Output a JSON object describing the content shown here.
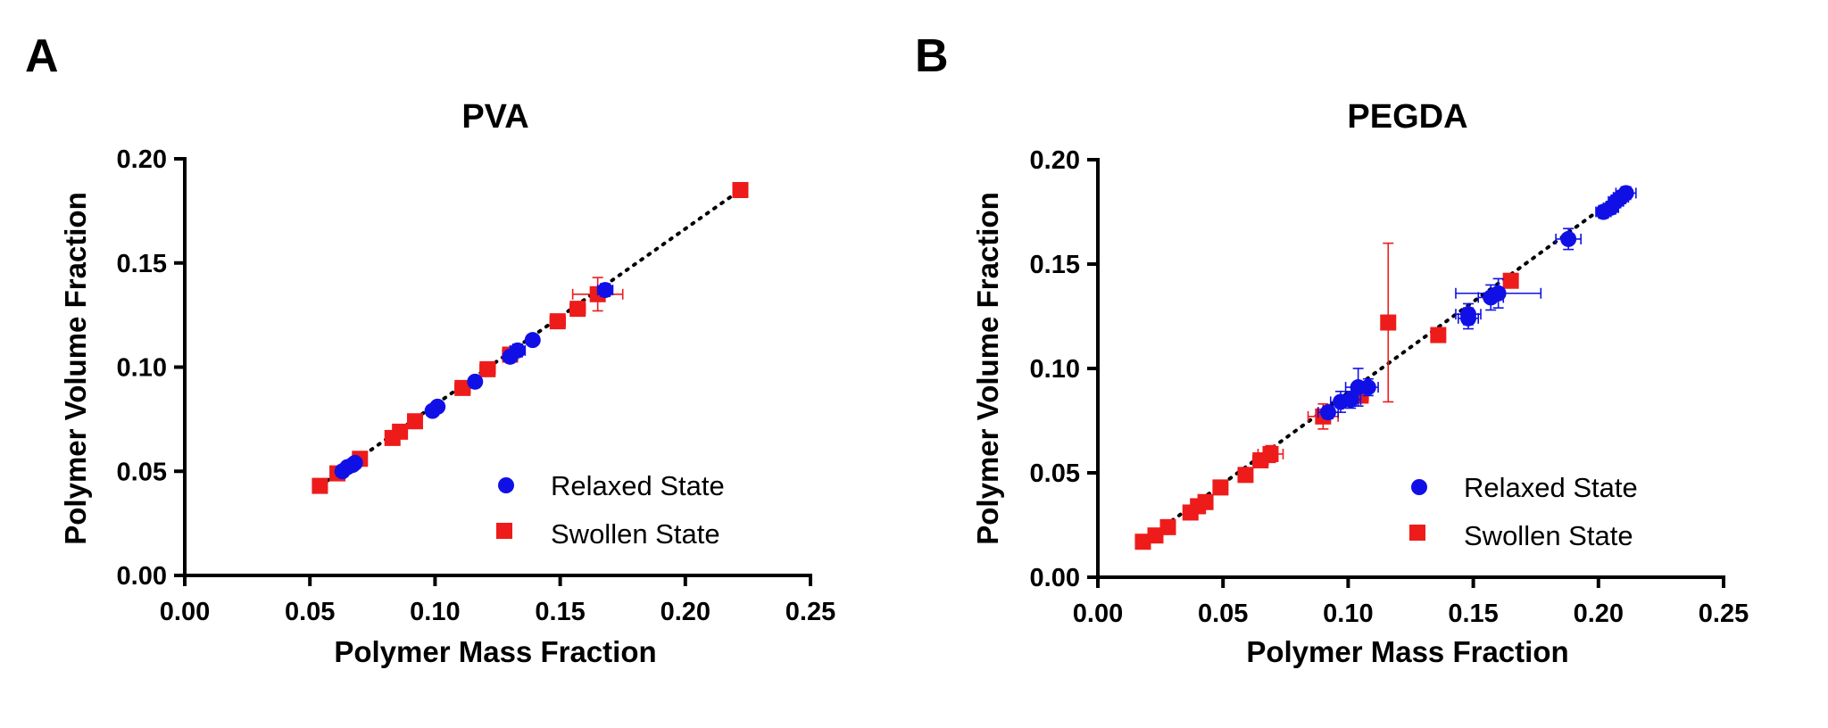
{
  "chart_data": [
    {
      "panel": "A",
      "type": "scatter",
      "title": "PVA",
      "xlabel": "Polymer Mass Fraction",
      "ylabel": "Polymer Volume  Fraction",
      "xlim": [
        0,
        0.25
      ],
      "ylim": [
        0,
        0.2
      ],
      "xticks": [
        "0.00",
        "0.05",
        "0.10",
        "0.15",
        "0.20",
        "0.25"
      ],
      "yticks": [
        "0.00",
        "0.05",
        "0.10",
        "0.15",
        "0.20"
      ],
      "grid": false,
      "legend_position": "bottom-right",
      "trendline": {
        "style": "dotted",
        "x": [
          0.054,
          0.222
        ],
        "y": [
          0.043,
          0.185
        ]
      },
      "series": [
        {
          "name": "Relaxed State",
          "marker": "circle",
          "color": "#1010e6",
          "points": [
            {
              "x": 0.063,
              "y": 0.05,
              "xerr": 0.001,
              "yerr": 0.001
            },
            {
              "x": 0.065,
              "y": 0.052,
              "xerr": 0.001,
              "yerr": 0.001
            },
            {
              "x": 0.067,
              "y": 0.053,
              "xerr": 0.001,
              "yerr": 0.001
            },
            {
              "x": 0.068,
              "y": 0.054,
              "xerr": 0.001,
              "yerr": 0.001
            },
            {
              "x": 0.099,
              "y": 0.079,
              "xerr": 0.002,
              "yerr": 0.002
            },
            {
              "x": 0.101,
              "y": 0.081,
              "xerr": 0.002,
              "yerr": 0.002
            },
            {
              "x": 0.116,
              "y": 0.093,
              "xerr": 0.002,
              "yerr": 0.002
            },
            {
              "x": 0.13,
              "y": 0.105,
              "xerr": 0.002,
              "yerr": 0.002
            },
            {
              "x": 0.133,
              "y": 0.108,
              "xerr": 0.003,
              "yerr": 0.003
            },
            {
              "x": 0.139,
              "y": 0.113,
              "xerr": 0.002,
              "yerr": 0.002
            },
            {
              "x": 0.168,
              "y": 0.137,
              "xerr": 0.003,
              "yerr": 0.003
            }
          ]
        },
        {
          "name": "Swollen State",
          "marker": "square",
          "color": "#ee1b1b",
          "points": [
            {
              "x": 0.054,
              "y": 0.043,
              "xerr": 0.001,
              "yerr": 0.001
            },
            {
              "x": 0.061,
              "y": 0.049,
              "xerr": 0.002,
              "yerr": 0.001
            },
            {
              "x": 0.07,
              "y": 0.056,
              "xerr": 0.002,
              "yerr": 0.001
            },
            {
              "x": 0.083,
              "y": 0.066,
              "xerr": 0.002,
              "yerr": 0.002
            },
            {
              "x": 0.086,
              "y": 0.069,
              "xerr": 0.002,
              "yerr": 0.002
            },
            {
              "x": 0.092,
              "y": 0.074,
              "xerr": 0.002,
              "yerr": 0.002
            },
            {
              "x": 0.111,
              "y": 0.09,
              "xerr": 0.003,
              "yerr": 0.002
            },
            {
              "x": 0.121,
              "y": 0.099,
              "xerr": 0.003,
              "yerr": 0.003
            },
            {
              "x": 0.13,
              "y": 0.106,
              "xerr": 0.003,
              "yerr": 0.002
            },
            {
              "x": 0.149,
              "y": 0.122,
              "xerr": 0.003,
              "yerr": 0.003
            },
            {
              "x": 0.157,
              "y": 0.128,
              "xerr": 0.003,
              "yerr": 0.003
            },
            {
              "x": 0.165,
              "y": 0.135,
              "xerr": 0.01,
              "yerr": 0.008
            },
            {
              "x": 0.222,
              "y": 0.185,
              "xerr": 0.001,
              "yerr": 0.001
            }
          ]
        }
      ]
    },
    {
      "panel": "B",
      "type": "scatter",
      "title": "PEGDA",
      "xlabel": "Polymer Mass Fraction",
      "ylabel": "Polymer Volume  Fraction",
      "xlim": [
        0,
        0.25
      ],
      "ylim": [
        0,
        0.2
      ],
      "xticks": [
        "0.00",
        "0.05",
        "0.10",
        "0.15",
        "0.20",
        "0.25"
      ],
      "yticks": [
        "0.00",
        "0.05",
        "0.10",
        "0.15",
        "0.20"
      ],
      "grid": false,
      "legend_position": "bottom-right",
      "trendline": {
        "style": "dotted",
        "x": [
          0.018,
          0.212
        ],
        "y": [
          0.017,
          0.186
        ]
      },
      "series": [
        {
          "name": "Relaxed State",
          "marker": "circle",
          "color": "#1010e6",
          "points": [
            {
              "x": 0.092,
              "y": 0.079,
              "xerr": 0.004,
              "yerr": 0.003
            },
            {
              "x": 0.097,
              "y": 0.084,
              "xerr": 0.004,
              "yerr": 0.005
            },
            {
              "x": 0.101,
              "y": 0.085,
              "xerr": 0.004,
              "yerr": 0.004
            },
            {
              "x": 0.104,
              "y": 0.091,
              "xerr": 0.005,
              "yerr": 0.009
            },
            {
              "x": 0.108,
              "y": 0.091,
              "xerr": 0.004,
              "yerr": 0.004
            },
            {
              "x": 0.148,
              "y": 0.124,
              "xerr": 0.004,
              "yerr": 0.005
            },
            {
              "x": 0.148,
              "y": 0.126,
              "xerr": 0.005,
              "yerr": 0.005
            },
            {
              "x": 0.157,
              "y": 0.134,
              "xerr": 0.005,
              "yerr": 0.006
            },
            {
              "x": 0.16,
              "y": 0.136,
              "xerr": 0.017,
              "yerr": 0.007
            },
            {
              "x": 0.188,
              "y": 0.162,
              "xerr": 0.005,
              "yerr": 0.005
            },
            {
              "x": 0.202,
              "y": 0.175,
              "xerr": 0.003,
              "yerr": 0.003
            },
            {
              "x": 0.205,
              "y": 0.177,
              "xerr": 0.003,
              "yerr": 0.003
            },
            {
              "x": 0.207,
              "y": 0.18,
              "xerr": 0.003,
              "yerr": 0.003
            },
            {
              "x": 0.209,
              "y": 0.182,
              "xerr": 0.003,
              "yerr": 0.003
            },
            {
              "x": 0.211,
              "y": 0.184,
              "xerr": 0.004,
              "yerr": 0.003
            }
          ]
        },
        {
          "name": "Swollen State",
          "marker": "square",
          "color": "#ee1b1b",
          "points": [
            {
              "x": 0.018,
              "y": 0.017,
              "xerr": 0.001,
              "yerr": 0.001
            },
            {
              "x": 0.023,
              "y": 0.02,
              "xerr": 0.001,
              "yerr": 0.001
            },
            {
              "x": 0.028,
              "y": 0.024,
              "xerr": 0.001,
              "yerr": 0.001
            },
            {
              "x": 0.037,
              "y": 0.031,
              "xerr": 0.001,
              "yerr": 0.001
            },
            {
              "x": 0.04,
              "y": 0.034,
              "xerr": 0.001,
              "yerr": 0.001
            },
            {
              "x": 0.043,
              "y": 0.036,
              "xerr": 0.001,
              "yerr": 0.001
            },
            {
              "x": 0.049,
              "y": 0.043,
              "xerr": 0.002,
              "yerr": 0.002
            },
            {
              "x": 0.059,
              "y": 0.049,
              "xerr": 0.002,
              "yerr": 0.002
            },
            {
              "x": 0.065,
              "y": 0.056,
              "xerr": 0.003,
              "yerr": 0.003
            },
            {
              "x": 0.069,
              "y": 0.059,
              "xerr": 0.005,
              "yerr": 0.004
            },
            {
              "x": 0.09,
              "y": 0.077,
              "xerr": 0.006,
              "yerr": 0.006
            },
            {
              "x": 0.105,
              "y": 0.087,
              "xerr": 0.003,
              "yerr": 0.003
            },
            {
              "x": 0.116,
              "y": 0.122,
              "xerr": 0.001,
              "yerr": 0.038
            },
            {
              "x": 0.136,
              "y": 0.116,
              "xerr": 0.002,
              "yerr": 0.002
            },
            {
              "x": 0.165,
              "y": 0.142,
              "xerr": 0.002,
              "yerr": 0.002
            }
          ]
        }
      ]
    }
  ]
}
